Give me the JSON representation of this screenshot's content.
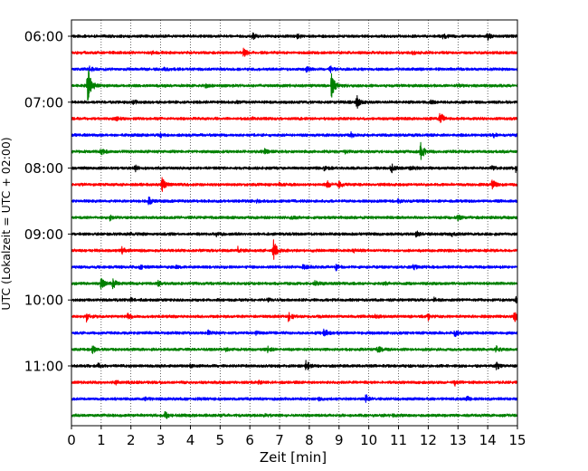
{
  "chart_data": {
    "type": "line",
    "title": "",
    "xlabel": "Zeit  [min]",
    "ylabel": "UTC (Lokalzeit = UTC + 02:00)",
    "xlim": [
      0,
      15
    ],
    "x_ticks": [
      0,
      1,
      2,
      3,
      4,
      5,
      6,
      7,
      8,
      9,
      10,
      11,
      12,
      13,
      14,
      15
    ],
    "y_ticks": [
      "06:00",
      "07:00",
      "08:00",
      "09:00",
      "10:00",
      "11:00"
    ],
    "grid_x": "dotted",
    "trace_colors": [
      "#000000",
      "#ff0000",
      "#0000ff",
      "#008000"
    ],
    "trace_minutes": 15,
    "traces": [
      {
        "start": "06:00",
        "color": "#000000",
        "events": [
          {
            "t": 6.1,
            "amp": 0.35
          },
          {
            "t": 7.6,
            "amp": 0.2
          },
          {
            "t": 12.5,
            "amp": 0.3
          },
          {
            "t": 14.0,
            "amp": 0.35
          }
        ]
      },
      {
        "start": "06:15",
        "color": "#ff0000",
        "events": [
          {
            "t": 5.8,
            "amp": 0.55
          },
          {
            "t": 11.5,
            "amp": 0.3
          },
          {
            "t": 2.7,
            "amp": 0.15
          }
        ]
      },
      {
        "start": "06:30",
        "color": "#0000ff",
        "events": [
          {
            "t": 0.6,
            "amp": 0.3
          },
          {
            "t": 7.9,
            "amp": 0.3
          },
          {
            "t": 8.7,
            "amp": 0.35
          },
          {
            "t": 3.1,
            "amp": 0.15
          }
        ]
      },
      {
        "start": "06:45",
        "color": "#008000",
        "events": [
          {
            "t": 0.55,
            "amp": 2.6
          },
          {
            "t": 8.75,
            "amp": 1.4
          },
          {
            "t": 4.5,
            "amp": 0.15
          },
          {
            "t": 13.0,
            "amp": 0.15
          }
        ]
      },
      {
        "start": "07:00",
        "color": "#000000",
        "events": [
          {
            "t": 9.6,
            "amp": 0.7
          },
          {
            "t": 2.1,
            "amp": 0.25
          },
          {
            "t": 5.5,
            "amp": 0.2
          },
          {
            "t": 12.1,
            "amp": 0.2
          }
        ]
      },
      {
        "start": "07:15",
        "color": "#ff0000",
        "events": [
          {
            "t": 12.4,
            "amp": 0.85
          },
          {
            "t": 1.5,
            "amp": 0.2
          },
          {
            "t": 6.0,
            "amp": 0.2
          }
        ]
      },
      {
        "start": "07:30",
        "color": "#0000ff",
        "events": [
          {
            "t": 9.4,
            "amp": 0.3
          },
          {
            "t": 3.0,
            "amp": 0.2
          },
          {
            "t": 14.2,
            "amp": 0.2
          }
        ]
      },
      {
        "start": "07:45",
        "color": "#008000",
        "events": [
          {
            "t": 11.75,
            "amp": 1.0
          },
          {
            "t": 1.0,
            "amp": 0.45
          },
          {
            "t": 6.5,
            "amp": 0.25
          },
          {
            "t": 9.2,
            "amp": 0.2
          }
        ]
      },
      {
        "start": "08:00",
        "color": "#000000",
        "events": [
          {
            "t": 10.75,
            "amp": 0.6
          },
          {
            "t": 2.15,
            "amp": 0.4
          },
          {
            "t": 11.4,
            "amp": 0.35
          },
          {
            "t": 14.95,
            "amp": 0.5
          },
          {
            "t": 14.1,
            "amp": 0.35
          },
          {
            "t": 8.5,
            "amp": 0.2
          }
        ]
      },
      {
        "start": "08:15",
        "color": "#ff0000",
        "events": [
          {
            "t": 3.05,
            "amp": 0.75
          },
          {
            "t": 8.6,
            "amp": 0.4
          },
          {
            "t": 9.0,
            "amp": 0.35
          },
          {
            "t": 14.15,
            "amp": 0.55
          },
          {
            "t": 7.0,
            "amp": 0.2
          }
        ]
      },
      {
        "start": "08:30",
        "color": "#0000ff",
        "events": [
          {
            "t": 2.6,
            "amp": 0.45
          },
          {
            "t": 11.0,
            "amp": 0.2
          },
          {
            "t": 6.2,
            "amp": 0.15
          }
        ]
      },
      {
        "start": "08:45",
        "color": "#008000",
        "events": [
          {
            "t": 1.3,
            "amp": 0.3
          },
          {
            "t": 13.0,
            "amp": 0.3
          },
          {
            "t": 7.4,
            "amp": 0.15
          }
        ]
      },
      {
        "start": "09:00",
        "color": "#000000",
        "events": [
          {
            "t": 4.9,
            "amp": 0.35
          },
          {
            "t": 11.6,
            "amp": 0.3
          },
          {
            "t": 12.8,
            "amp": 0.2
          },
          {
            "t": 2.0,
            "amp": 0.15
          }
        ]
      },
      {
        "start": "09:15",
        "color": "#ff0000",
        "events": [
          {
            "t": 6.8,
            "amp": 1.2
          },
          {
            "t": 5.6,
            "amp": 0.35
          },
          {
            "t": 1.7,
            "amp": 0.4
          },
          {
            "t": 13.2,
            "amp": 0.2
          },
          {
            "t": 9.5,
            "amp": 0.2
          }
        ]
      },
      {
        "start": "09:30",
        "color": "#0000ff",
        "events": [
          {
            "t": 7.8,
            "amp": 0.35
          },
          {
            "t": 8.9,
            "amp": 0.35
          },
          {
            "t": 2.3,
            "amp": 0.25
          },
          {
            "t": 11.5,
            "amp": 0.25
          },
          {
            "t": 3.5,
            "amp": 0.15
          }
        ]
      },
      {
        "start": "09:45",
        "color": "#008000",
        "events": [
          {
            "t": 1.0,
            "amp": 0.6
          },
          {
            "t": 1.4,
            "amp": 0.55
          },
          {
            "t": 2.9,
            "amp": 0.3
          },
          {
            "t": 8.2,
            "amp": 0.3
          },
          {
            "t": 10.5,
            "amp": 0.2
          }
        ]
      },
      {
        "start": "10:00",
        "color": "#000000",
        "events": [
          {
            "t": 12.2,
            "amp": 0.3
          },
          {
            "t": 14.95,
            "amp": 0.35
          },
          {
            "t": 2.0,
            "amp": 0.2
          },
          {
            "t": 6.6,
            "amp": 0.2
          }
        ]
      },
      {
        "start": "10:15",
        "color": "#ff0000",
        "events": [
          {
            "t": 0.5,
            "amp": 0.65
          },
          {
            "t": 1.9,
            "amp": 0.3
          },
          {
            "t": 7.3,
            "amp": 0.55
          },
          {
            "t": 12.0,
            "amp": 0.35
          },
          {
            "t": 14.9,
            "amp": 0.6
          },
          {
            "t": 10.2,
            "amp": 0.2
          }
        ]
      },
      {
        "start": "10:30",
        "color": "#0000ff",
        "events": [
          {
            "t": 8.5,
            "amp": 0.55
          },
          {
            "t": 4.6,
            "amp": 0.35
          },
          {
            "t": 12.9,
            "amp": 0.45
          },
          {
            "t": 6.2,
            "amp": 0.2
          }
        ]
      },
      {
        "start": "10:45",
        "color": "#008000",
        "events": [
          {
            "t": 0.7,
            "amp": 0.45
          },
          {
            "t": 10.3,
            "amp": 0.5
          },
          {
            "t": 14.3,
            "amp": 0.45
          },
          {
            "t": 5.2,
            "amp": 0.2
          },
          {
            "t": 6.6,
            "amp": 0.3
          }
        ]
      },
      {
        "start": "11:00",
        "color": "#000000",
        "events": [
          {
            "t": 7.9,
            "amp": 0.7
          },
          {
            "t": 14.3,
            "amp": 0.4
          },
          {
            "t": 0.9,
            "amp": 0.3
          },
          {
            "t": 4.0,
            "amp": 0.15
          }
        ]
      },
      {
        "start": "11:15",
        "color": "#ff0000",
        "events": [
          {
            "t": 12.9,
            "amp": 0.4
          },
          {
            "t": 1.5,
            "amp": 0.2
          },
          {
            "t": 6.3,
            "amp": 0.15
          }
        ]
      },
      {
        "start": "11:30",
        "color": "#0000ff",
        "events": [
          {
            "t": 9.9,
            "amp": 0.45
          },
          {
            "t": 13.3,
            "amp": 0.25
          },
          {
            "t": 8.3,
            "amp": 0.2
          },
          {
            "t": 2.5,
            "amp": 0.15
          }
        ]
      },
      {
        "start": "11:45",
        "color": "#008000",
        "events": [
          {
            "t": 3.15,
            "amp": 0.4
          },
          {
            "t": 6.5,
            "amp": 0.15
          },
          {
            "t": 10.8,
            "amp": 0.15
          }
        ]
      }
    ]
  }
}
